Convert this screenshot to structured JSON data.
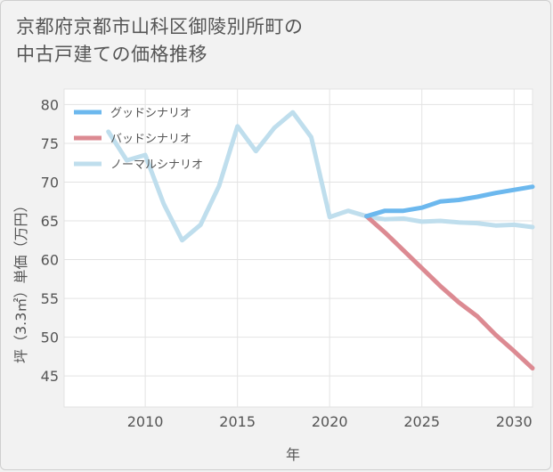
{
  "page": {
    "title_line1": "京都府京都市山科区御陵別所町の",
    "title_line2": "中古戸建ての価格推移"
  },
  "chart_data": {
    "type": "line",
    "xlabel": "年",
    "ylabel": "坪（3.3㎡）単価（万円）",
    "xlim": [
      2005.6,
      2031
    ],
    "ylim": [
      41,
      82
    ],
    "xticks": [
      2010,
      2015,
      2020,
      2025,
      2030
    ],
    "yticks": [
      45,
      50,
      55,
      60,
      65,
      70,
      75,
      80
    ],
    "legend_position": "top-left",
    "series": [
      {
        "name": "グッドシナリオ",
        "color": "#6cb8ee",
        "x": [
          2022,
          2023,
          2024,
          2025,
          2026,
          2027,
          2028,
          2029,
          2030,
          2031
        ],
        "y": [
          65.6,
          66.3,
          66.3,
          66.7,
          67.5,
          67.7,
          68.1,
          68.6,
          69.0,
          69.4
        ]
      },
      {
        "name": "バッドシナリオ",
        "color": "#dc8a92",
        "x": [
          2022,
          2023,
          2024,
          2025,
          2026,
          2027,
          2028,
          2029,
          2030,
          2031
        ],
        "y": [
          65.6,
          63.5,
          61.2,
          58.9,
          56.6,
          54.5,
          52.7,
          50.3,
          48.2,
          46.0
        ]
      },
      {
        "name": "ノーマルシナリオ",
        "color": "#bfdeed",
        "x": [
          2008,
          2009,
          2010,
          2011,
          2012,
          2013,
          2014,
          2015,
          2016,
          2017,
          2018,
          2019,
          2020,
          2021,
          2022,
          2023,
          2024,
          2025,
          2026,
          2027,
          2028,
          2029,
          2030,
          2031
        ],
        "y": [
          76.5,
          72.8,
          73.5,
          67.2,
          62.5,
          64.5,
          69.5,
          77.2,
          74.0,
          77.0,
          79.0,
          75.8,
          65.5,
          66.3,
          65.6,
          65.2,
          65.3,
          64.9,
          65.0,
          64.8,
          64.7,
          64.4,
          64.5,
          64.2
        ]
      }
    ]
  }
}
